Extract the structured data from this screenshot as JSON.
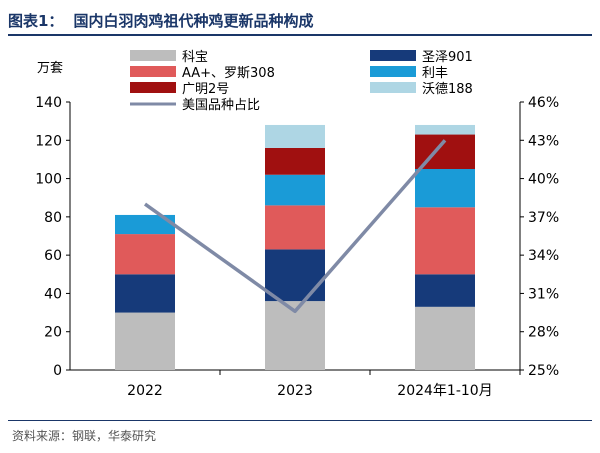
{
  "header": {
    "figure_label": "图表1：",
    "title": "国内白羽肉鸡祖代种鸡更新品种构成"
  },
  "footer": {
    "source": "资料来源：钢联，华泰研究"
  },
  "chart_data": {
    "type": "bar",
    "stacked": true,
    "categories": [
      "2022",
      "2023",
      "2024年1-10月"
    ],
    "ylabel": "万套",
    "ylim": [
      0,
      140
    ],
    "yticks": [
      0,
      20,
      40,
      60,
      80,
      100,
      120,
      140
    ],
    "y2lim": [
      25,
      46
    ],
    "y2ticks": [
      "25%",
      "28%",
      "31%",
      "34%",
      "37%",
      "40%",
      "43%",
      "46%"
    ],
    "series": [
      {
        "name": "科宝",
        "color": "#bdbdbd",
        "values": [
          30,
          36,
          33
        ]
      },
      {
        "name": "圣泽901",
        "color": "#163a7a",
        "values": [
          20,
          27,
          17
        ]
      },
      {
        "name": "AA+、罗斯308",
        "color": "#e05a5a",
        "values": [
          21,
          23,
          35
        ]
      },
      {
        "name": "利丰",
        "color": "#1a9bd7",
        "values": [
          10,
          16,
          20
        ]
      },
      {
        "name": "广明2号",
        "color": "#a01010",
        "values": [
          0,
          14,
          18
        ]
      },
      {
        "name": "沃德188",
        "color": "#aed6e4",
        "values": [
          0,
          12,
          5
        ]
      }
    ],
    "line_series": {
      "name": "美国品种占比",
      "color": "#7f8aa6",
      "axis": "right",
      "values": [
        38.0,
        29.6,
        43.0
      ]
    },
    "legend": [
      {
        "name": "科宝",
        "color": "#bdbdbd",
        "kind": "box"
      },
      {
        "name": "圣泽901",
        "color": "#163a7a",
        "kind": "box"
      },
      {
        "name": "AA+、罗斯308",
        "color": "#e05a5a",
        "kind": "box"
      },
      {
        "name": "利丰",
        "color": "#1a9bd7",
        "kind": "box"
      },
      {
        "name": "广明2号",
        "color": "#a01010",
        "kind": "box"
      },
      {
        "name": "沃德188",
        "color": "#aed6e4",
        "kind": "box"
      },
      {
        "name": "美国品种占比",
        "color": "#7f8aa6",
        "kind": "line"
      }
    ],
    "legend_position": "top"
  }
}
